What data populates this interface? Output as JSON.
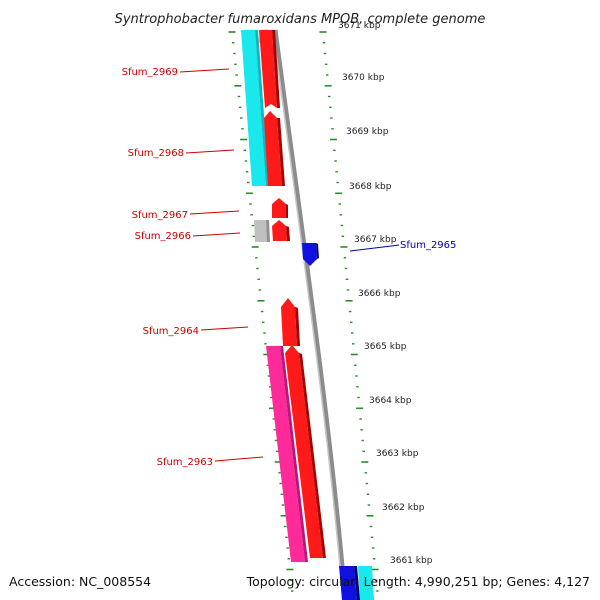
{
  "title": "Syntrophobacter fumaroxidans MPOB, complete genome",
  "accession": "Accession: NC_008554",
  "summary": "Topology: circular; Length: 4,990,251 bp; Genes: 4,127",
  "colors": {
    "forward_strand": "#ff1a1a",
    "reverse_strand": "#1010e0",
    "rna": "#ff2a9a",
    "cyan_feature": "#19e8ec",
    "pseudo": "#c0c0c0",
    "backbone": "#8c8c8c",
    "tick": "#2e8b2e",
    "label_forward": "#cc0000",
    "label_reverse": "#0000aa"
  },
  "scale_labels": [
    {
      "kbp": 3671,
      "text": "3671 kbp"
    },
    {
      "kbp": 3670,
      "text": "3670 kbp"
    },
    {
      "kbp": 3669,
      "text": "3669 kbp"
    },
    {
      "kbp": 3668,
      "text": "3668 kbp"
    },
    {
      "kbp": 3667,
      "text": "3667 kbp"
    },
    {
      "kbp": 3666,
      "text": "3666 kbp"
    },
    {
      "kbp": 3665,
      "text": "3665 kbp"
    },
    {
      "kbp": 3664,
      "text": "3664 kbp"
    },
    {
      "kbp": 3663,
      "text": "3663 kbp"
    },
    {
      "kbp": 3662,
      "text": "3662 kbp"
    },
    {
      "kbp": 3661,
      "text": "3661 kbp"
    }
  ],
  "gene_labels": [
    {
      "name": "Sfum_2969",
      "strand": "forward"
    },
    {
      "name": "Sfum_2968",
      "strand": "forward"
    },
    {
      "name": "Sfum_2967",
      "strand": "forward"
    },
    {
      "name": "Sfum_2966",
      "strand": "forward"
    },
    {
      "name": "Sfum_2965",
      "strand": "reverse"
    },
    {
      "name": "Sfum_2964",
      "strand": "forward"
    },
    {
      "name": "Sfum_2963",
      "strand": "forward"
    }
  ]
}
